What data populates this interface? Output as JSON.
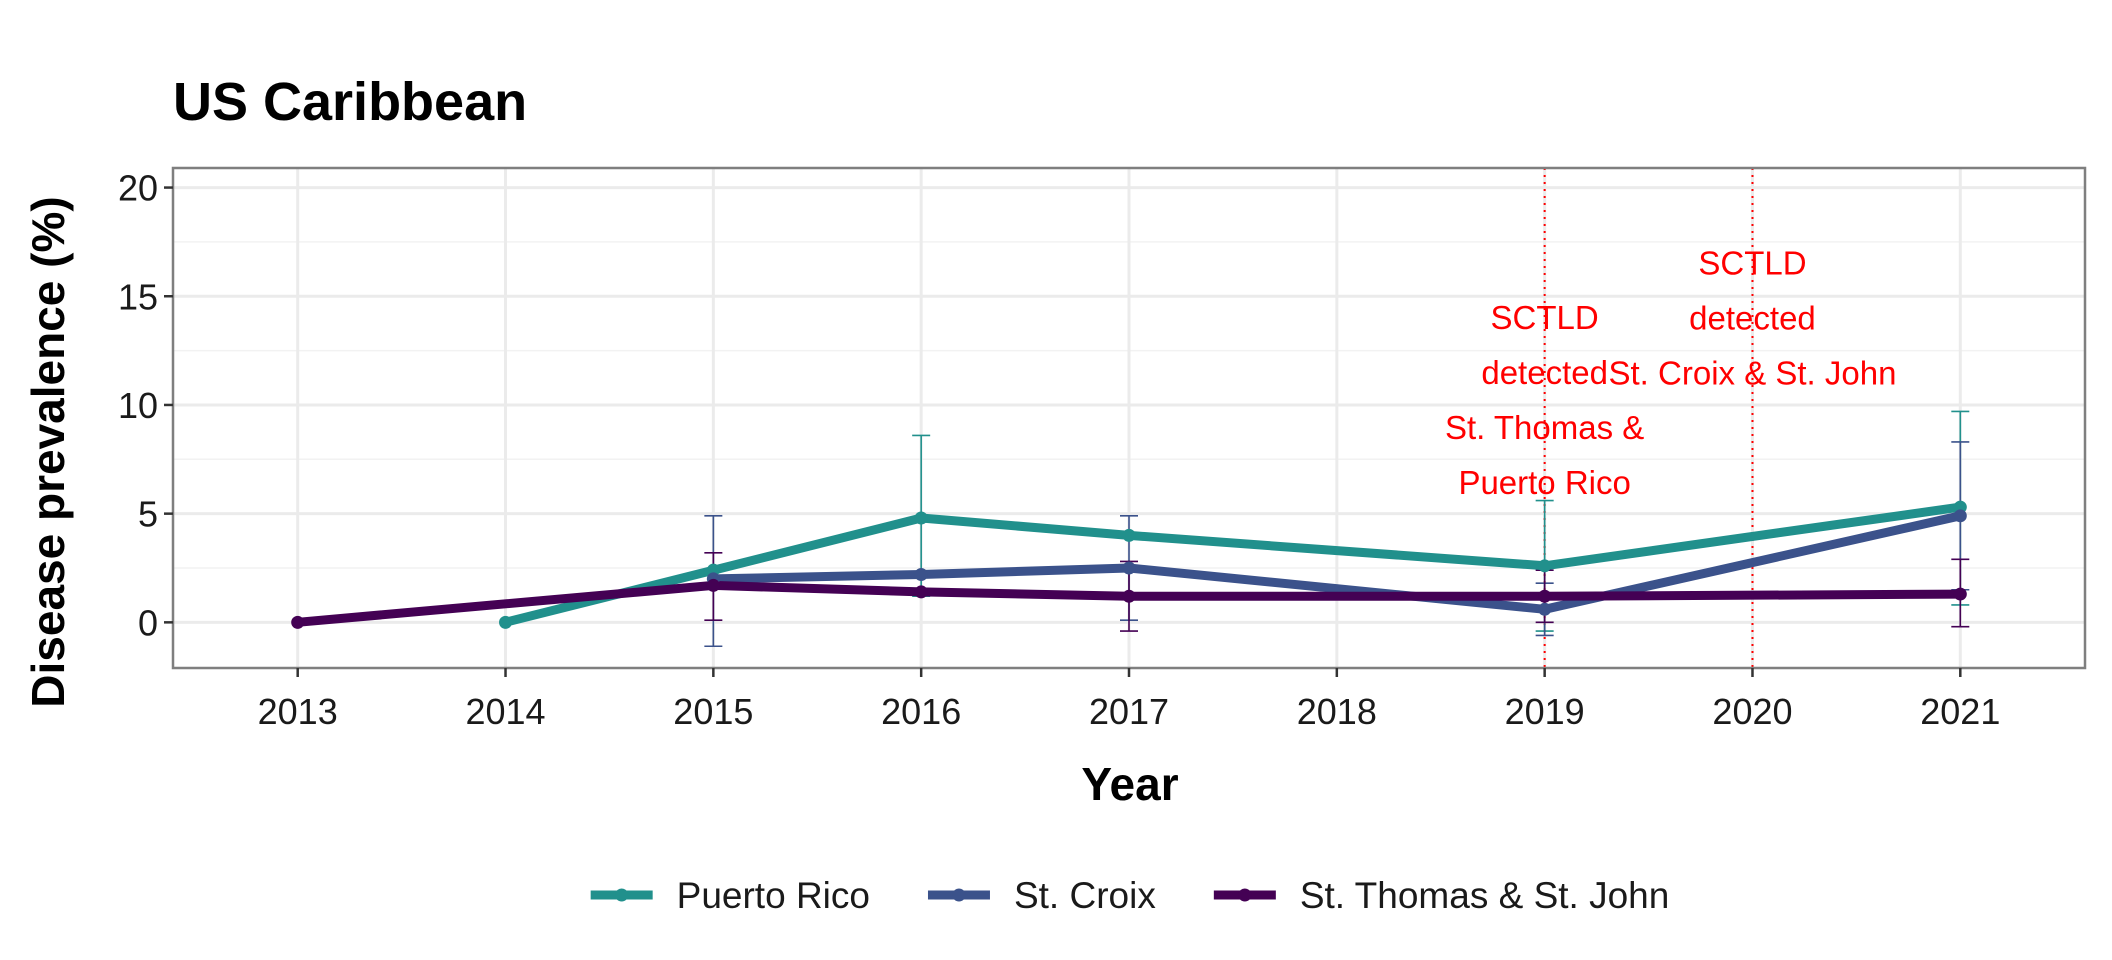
{
  "chart_data": {
    "type": "line",
    "title": "US Caribbean",
    "xlabel": "Year",
    "ylabel": "Disease prevalence (%)",
    "xlim": [
      2012.4,
      2021.6
    ],
    "ylim": [
      -2.1,
      20.9
    ],
    "x_ticks": [
      "2013",
      "2014",
      "2015",
      "2016",
      "2017",
      "2018",
      "2019",
      "2020",
      "2021"
    ],
    "y_ticks": [
      "0",
      "5",
      "10",
      "15",
      "20"
    ],
    "grid": true,
    "legend_position": "bottom",
    "series": [
      {
        "name": "Puerto Rico",
        "color": "#21908C",
        "points": [
          {
            "x": 2014,
            "y": 0
          },
          {
            "x": 2015,
            "y": 2.4
          },
          {
            "x": 2016,
            "y": 4.8,
            "ymin": 1.2,
            "ymax": 8.6
          },
          {
            "x": 2017,
            "y": 4.0
          },
          {
            "x": 2019,
            "y": 2.6,
            "ymin": -0.4,
            "ymax": 5.6
          },
          {
            "x": 2021,
            "y": 5.3,
            "ymin": 0.8,
            "ymax": 9.7
          }
        ]
      },
      {
        "name": "St. Croix",
        "color": "#3B528B",
        "points": [
          {
            "x": 2015,
            "y": 2.0,
            "ymin": -1.1,
            "ymax": 4.9
          },
          {
            "x": 2016,
            "y": 2.2
          },
          {
            "x": 2017,
            "y": 2.5,
            "ymin": 0.1,
            "ymax": 4.9
          },
          {
            "x": 2019,
            "y": 0.6,
            "ymin": -0.6,
            "ymax": 1.8
          },
          {
            "x": 2021,
            "y": 4.9,
            "ymin": 1.5,
            "ymax": 8.3
          }
        ]
      },
      {
        "name": "St. Thomas & St. John",
        "color": "#440154",
        "points": [
          {
            "x": 2013,
            "y": 0
          },
          {
            "x": 2015,
            "y": 1.7,
            "ymin": 0.1,
            "ymax": 3.2
          },
          {
            "x": 2016,
            "y": 1.4
          },
          {
            "x": 2017,
            "y": 1.2,
            "ymin": -0.4,
            "ymax": 2.8
          },
          {
            "x": 2019,
            "y": 1.2,
            "ymin": 0.0,
            "ymax": 2.4
          },
          {
            "x": 2021,
            "y": 1.3,
            "ymin": -0.2,
            "ymax": 2.9
          }
        ]
      }
    ],
    "vlines": [
      {
        "x": 2019,
        "color": "#ff0000",
        "style": "dotted"
      },
      {
        "x": 2020,
        "color": "#ff0000",
        "style": "dotted"
      }
    ],
    "annotations": [
      {
        "x": 2019,
        "y": 13.5,
        "lines": [
          "SCTLD",
          "detected",
          "St. Thomas &",
          "Puerto Rico"
        ]
      },
      {
        "x": 2020,
        "y": 16.0,
        "lines": [
          "SCTLD",
          "detected",
          "St. Croix & St. John"
        ]
      }
    ]
  }
}
